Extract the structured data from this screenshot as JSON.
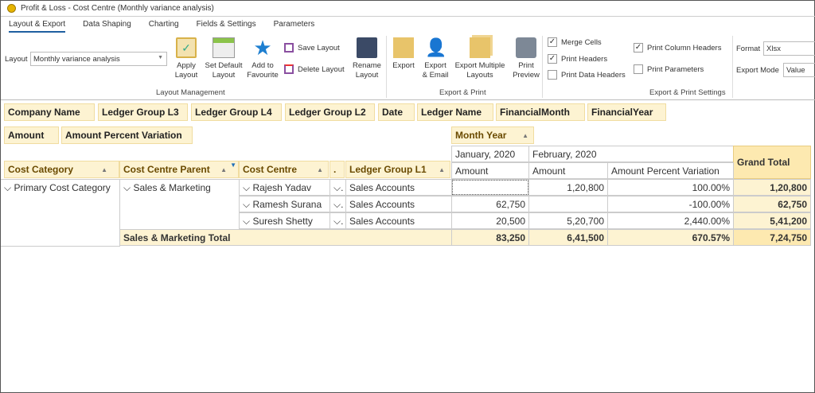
{
  "window": {
    "title": "Profit & Loss - Cost Centre (Monthly variance analysis)"
  },
  "tabs": [
    "Layout & Export",
    "Data Shaping",
    "Charting",
    "Fields & Settings",
    "Parameters"
  ],
  "layout_mgmt": {
    "layout_label": "Layout",
    "layout_value": "Monthly variance analysis",
    "apply": "Apply Layout",
    "set_default": "Set Default Layout",
    "favourite": "Add to Favourite",
    "save": "Save Layout",
    "delete": "Delete Layout",
    "rename": "Rename Layout",
    "group": "Layout Management"
  },
  "export_print": {
    "export": "Export",
    "email": "Export & Email",
    "multiple": "Export Multiple Layouts",
    "preview": "Print Preview",
    "group": "Export & Print"
  },
  "settings": {
    "merge_cells": {
      "label": "Merge Cells",
      "checked": true
    },
    "print_headers": {
      "label": "Print Headers",
      "checked": true
    },
    "print_data_headers": {
      "label": "Print Data Headers",
      "checked": false
    },
    "print_column_headers": {
      "label": "Print Column Headers",
      "checked": true
    },
    "print_parameters": {
      "label": "Print Parameters",
      "checked": false
    },
    "format_label": "Format",
    "format_value": "Xlsx",
    "mode_label": "Export Mode",
    "mode_value": "Value",
    "group": "Export & Print Settings"
  },
  "filter_fields": [
    "Company Name",
    "Ledger Group L3",
    "Ledger Group L4",
    "Ledger Group L2",
    "Date",
    "Ledger Name",
    "FinancialMonth",
    "FinancialYear"
  ],
  "data_fields": [
    "Amount",
    "Amount Percent Variation"
  ],
  "column_field": "Month Year",
  "row_headers": [
    "Cost Category",
    "Cost Centre Parent",
    "Cost Centre",
    ".",
    "Ledger Group L1"
  ],
  "months": [
    "January, 2020",
    "February, 2020"
  ],
  "value_headers": [
    "Amount",
    "Amount",
    "Amount Percent Variation"
  ],
  "grand_total": "Grand Total",
  "rows": [
    {
      "category": "Primary Cost Category",
      "parent": "Sales & Marketing",
      "centre": "Rajesh Yadav",
      "group": "Sales Accounts",
      "jan": "",
      "feb": "1,20,800",
      "var": "100.00%",
      "total": "1,20,800"
    },
    {
      "centre": "Ramesh Surana",
      "group": "Sales Accounts",
      "jan": "62,750",
      "feb": "",
      "var": "-100.00%",
      "total": "62,750"
    },
    {
      "centre": "Suresh Shetty",
      "group": "Sales Accounts",
      "jan": "20,500",
      "feb": "5,20,700",
      "var": "2,440.00%",
      "total": "5,41,200"
    }
  ],
  "subtotal": {
    "label": "Sales & Marketing Total",
    "jan": "83,250",
    "feb": "6,41,500",
    "var": "670.57%",
    "total": "7,24,750"
  },
  "colors": {
    "field_bg": "#fdf3d2",
    "grand_total_bg": "#fde9b0",
    "accent": "#1f5fa0"
  }
}
